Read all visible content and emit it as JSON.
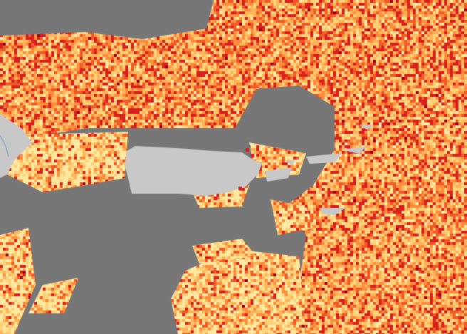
{
  "map": {
    "colors": {
      "no_data": "#777777",
      "land": "#c8c8c8",
      "river": "#6a9ad0",
      "scale": [
        "#ffe9a0",
        "#ffd27a",
        "#ffb45a",
        "#ff8c3c",
        "#f05a28",
        "#d8201e",
        "#a0001e"
      ]
    }
  }
}
